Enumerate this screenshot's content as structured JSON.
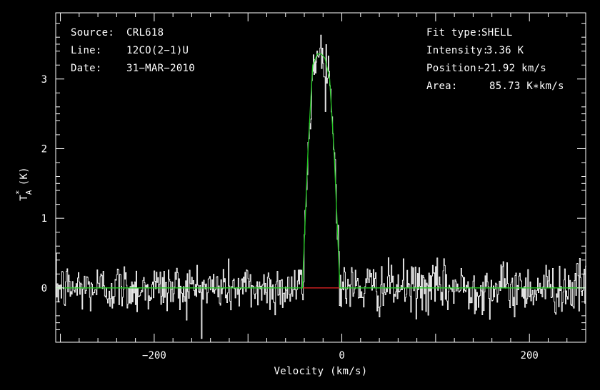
{
  "chart_data": {
    "type": "line",
    "xlabel": "Velocity (km/s)",
    "ylabel": "T",
    "ylabel_sub": "A",
    "ylabel_sup": "*",
    "ylabel_unit": "(K)",
    "xlim": [
      -305,
      260
    ],
    "ylim": [
      -0.78,
      3.95
    ],
    "x_ticks": [
      -200,
      0,
      200
    ],
    "x_tick_labels": [
      "−200",
      "0",
      "200"
    ],
    "y_ticks": [
      0,
      1,
      2,
      3
    ],
    "y_tick_labels": [
      "0",
      "1",
      "2",
      "3"
    ],
    "grid": false,
    "info_left": [
      {
        "key": "Source:",
        "value": "CRL618"
      },
      {
        "key": "Line:",
        "value": "12CO(2−1)U"
      },
      {
        "key": "Date:",
        "value": "31−MAR−2010"
      }
    ],
    "info_right": [
      {
        "key": "Fit type:",
        "value": "SHELL"
      },
      {
        "key": "Intensity:",
        "value": "3.36 K"
      },
      {
        "key": "Position:",
        "value": "−21.92 km/s"
      },
      {
        "key": "Area:",
        "value": "85.73 K∗km/s"
      }
    ],
    "fit": {
      "x": [
        -305,
        -42,
        -36,
        -31,
        -26,
        -22,
        -18,
        -13,
        -8,
        -2,
        260
      ],
      "y": [
        0,
        0,
        2.0,
        3.2,
        3.36,
        3.36,
        3.3,
        3.0,
        1.9,
        0,
        0
      ]
    },
    "fit_window": {
      "x": [
        -42,
        -2
      ],
      "y": 0
    },
    "noise_rms": 0.18,
    "colors": {
      "background": "#000000",
      "axes": "#ffffff",
      "spectrum": "#ffffff",
      "fit": "#22cc22",
      "window": "#dd2222"
    }
  }
}
